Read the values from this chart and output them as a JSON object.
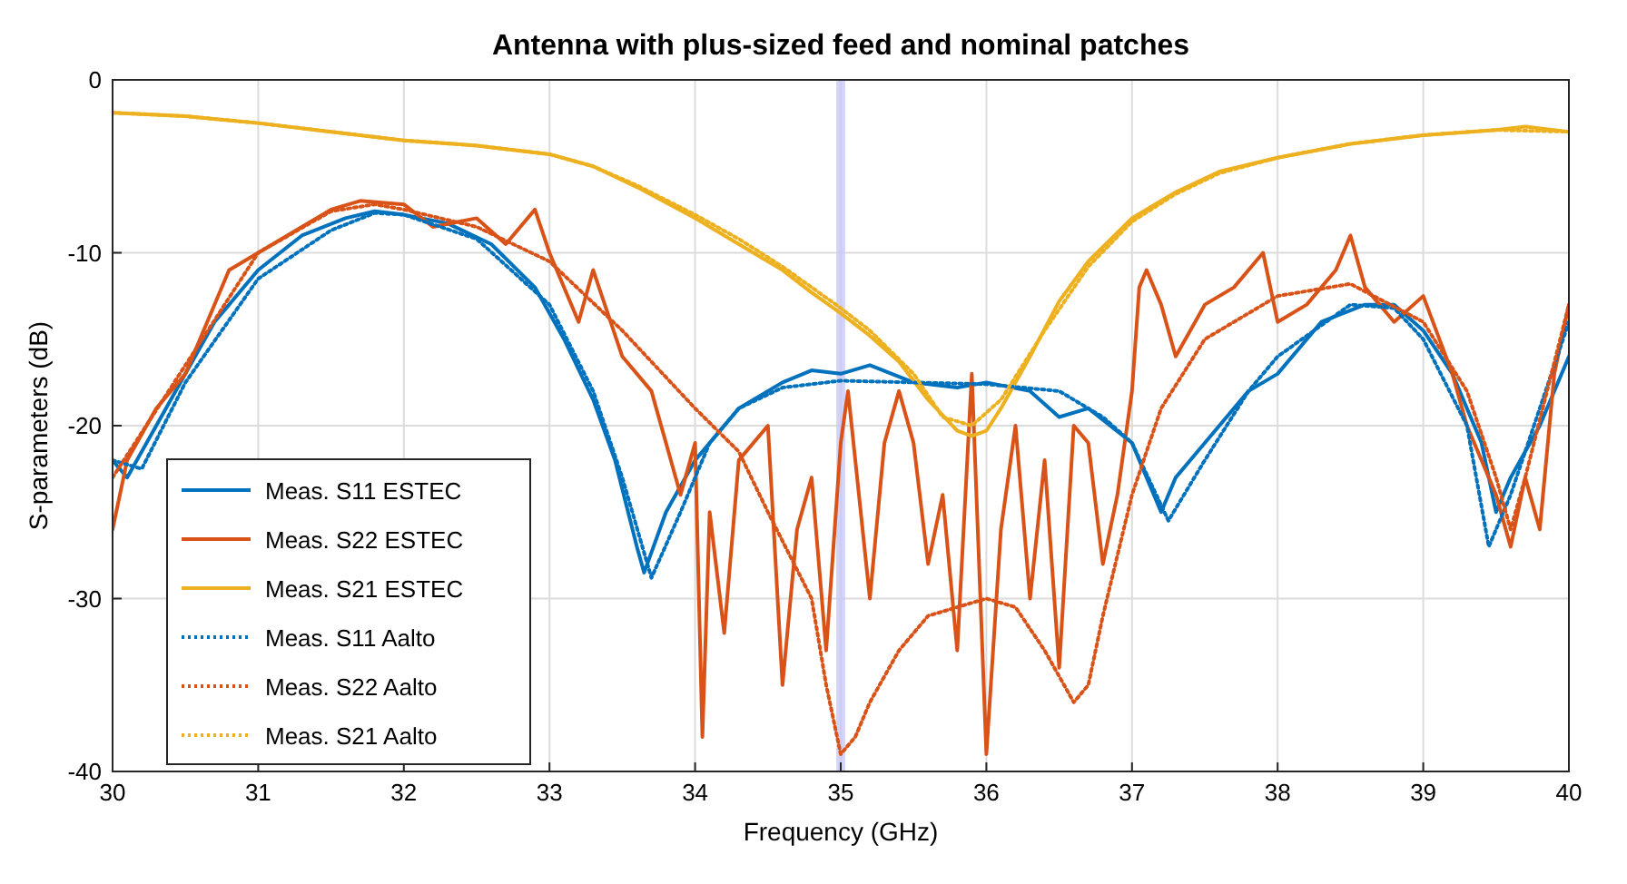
{
  "chart_data": {
    "type": "line",
    "title": "Antenna with plus-sized feed and nominal patches",
    "xlabel": "Frequency (GHz)",
    "ylabel": "S-parameters (dB)",
    "xlim": [
      30,
      40
    ],
    "xticks": [
      30,
      31,
      32,
      33,
      34,
      35,
      36,
      37,
      38,
      39,
      40
    ],
    "ylim": [
      -40,
      0
    ],
    "yticks": [
      -40,
      -30,
      -20,
      -10,
      0
    ],
    "grid": true,
    "legend": "bottom left",
    "bands": [
      {
        "axis": "x",
        "from": 34.97,
        "to": 35.03,
        "color": "#c8c8f5"
      }
    ],
    "series": [
      {
        "name": "Meas. S11 ESTEC",
        "color": "#0072bd",
        "line_style": "solid",
        "x": [
          30,
          30.1,
          30.3,
          30.5,
          30.7,
          31,
          31.3,
          31.6,
          31.8,
          32,
          32.3,
          32.6,
          32.9,
          33.1,
          33.3,
          33.45,
          33.6,
          33.65,
          33.8,
          34,
          34.3,
          34.6,
          34.8,
          35,
          35.2,
          35.5,
          35.8,
          36,
          36.3,
          36.5,
          36.7,
          37,
          37.2,
          37.3,
          37.5,
          37.8,
          38,
          38.3,
          38.6,
          38.8,
          39,
          39.2,
          39.4,
          39.5,
          39.6,
          39.8,
          40
        ],
        "values": [
          -22,
          -23,
          -20,
          -17,
          -14,
          -11,
          -9,
          -8,
          -7.6,
          -7.8,
          -8.3,
          -9.5,
          -12,
          -15,
          -18.5,
          -22,
          -27,
          -28.5,
          -25,
          -22,
          -19,
          -17.5,
          -16.8,
          -17,
          -16.5,
          -17.5,
          -17.8,
          -17.5,
          -18,
          -19.5,
          -19,
          -21,
          -25,
          -23,
          -21,
          -18,
          -17,
          -14,
          -13,
          -13,
          -14.5,
          -17,
          -21,
          -25,
          -23,
          -20,
          -16
        ]
      },
      {
        "name": "Meas. S22 ESTEC",
        "color": "#d95319",
        "line_style": "solid",
        "x": [
          30,
          30.1,
          30.3,
          30.5,
          30.6,
          30.8,
          31,
          31.2,
          31.5,
          31.7,
          32,
          32.2,
          32.5,
          32.7,
          32.9,
          33,
          33.2,
          33.3,
          33.5,
          33.7,
          33.8,
          33.9,
          34,
          34.05,
          34.1,
          34.2,
          34.3,
          34.5,
          34.6,
          34.7,
          34.8,
          34.9,
          35,
          35.05,
          35.1,
          35.2,
          35.3,
          35.4,
          35.5,
          35.6,
          35.7,
          35.8,
          35.9,
          36,
          36.1,
          36.2,
          36.3,
          36.4,
          36.5,
          36.6,
          36.7,
          36.8,
          36.9,
          37,
          37.05,
          37.1,
          37.2,
          37.3,
          37.5,
          37.7,
          37.9,
          38,
          38.2,
          38.4,
          38.5,
          38.6,
          38.8,
          39,
          39.2,
          39.3,
          39.5,
          39.6,
          39.7,
          39.8,
          39.9,
          40
        ],
        "values": [
          -26,
          -22,
          -19,
          -17,
          -15,
          -11,
          -10,
          -9,
          -7.5,
          -7,
          -7.2,
          -8.5,
          -8,
          -9.5,
          -7.5,
          -10,
          -14,
          -11,
          -16,
          -18,
          -21,
          -24,
          -21,
          -38,
          -25,
          -32,
          -22,
          -20,
          -35,
          -26,
          -23,
          -33,
          -21,
          -18,
          -22,
          -30,
          -21,
          -18,
          -21,
          -28,
          -24,
          -33,
          -17,
          -39,
          -26,
          -20,
          -30,
          -22,
          -34,
          -20,
          -21,
          -28,
          -24,
          -18,
          -12,
          -11,
          -13,
          -16,
          -13,
          -12,
          -10,
          -14,
          -13,
          -11,
          -9,
          -12,
          -14,
          -12.5,
          -17,
          -20,
          -24,
          -27,
          -23,
          -26,
          -17,
          -13
        ]
      },
      {
        "name": "Meas. S21 ESTEC",
        "color": "#edb120",
        "line_style": "solid",
        "x": [
          30,
          30.5,
          31,
          31.5,
          32,
          32.5,
          33,
          33.3,
          33.6,
          34,
          34.3,
          34.6,
          34.8,
          35,
          35.2,
          35.4,
          35.6,
          35.8,
          35.9,
          36,
          36.1,
          36.3,
          36.5,
          36.7,
          37,
          37.3,
          37.6,
          38,
          38.5,
          39,
          39.5,
          39.7,
          40
        ],
        "values": [
          -1.9,
          -2.1,
          -2.5,
          -3,
          -3.5,
          -3.8,
          -4.3,
          -5,
          -6.2,
          -8,
          -9.5,
          -11,
          -12.3,
          -13.5,
          -14.8,
          -16.3,
          -18.5,
          -20.3,
          -20.6,
          -20.3,
          -19,
          -16,
          -12.8,
          -10.5,
          -8,
          -6.5,
          -5.3,
          -4.5,
          -3.7,
          -3.2,
          -2.9,
          -2.7,
          -3
        ]
      },
      {
        "name": "Meas. S11 Aalto",
        "color": "#0072bd",
        "line_style": "dotted",
        "x": [
          30,
          30.2,
          30.5,
          31,
          31.5,
          31.8,
          32,
          32.5,
          33,
          33.3,
          33.5,
          33.7,
          33.9,
          34.1,
          34.3,
          34.6,
          35,
          35.5,
          36,
          36.5,
          36.8,
          37,
          37.25,
          37.5,
          37.8,
          38,
          38.5,
          38.8,
          39,
          39.3,
          39.45,
          39.6,
          39.8,
          40
        ],
        "values": [
          -22,
          -22.5,
          -17.5,
          -11.5,
          -8.7,
          -7.7,
          -7.8,
          -9.2,
          -13,
          -18,
          -23,
          -28.8,
          -25,
          -21,
          -19,
          -17.8,
          -17.4,
          -17.5,
          -17.6,
          -18,
          -19.5,
          -21,
          -25.5,
          -22,
          -18,
          -16,
          -13,
          -13.2,
          -15,
          -20,
          -27,
          -24,
          -19,
          -14
        ]
      },
      {
        "name": "Meas. S22 Aalto",
        "color": "#d95319",
        "line_style": "dotted",
        "x": [
          30,
          30.5,
          31,
          31.5,
          31.8,
          32,
          32.5,
          33,
          33.5,
          34,
          34.3,
          34.5,
          34.8,
          34.9,
          35,
          35.1,
          35.2,
          35.4,
          35.6,
          36,
          36.2,
          36.4,
          36.6,
          36.7,
          36.8,
          37,
          37.2,
          37.5,
          38,
          38.5,
          39,
          39.3,
          39.5,
          39.6,
          39.7,
          40
        ],
        "values": [
          -23,
          -16.5,
          -10,
          -7.6,
          -7.2,
          -7.5,
          -8.5,
          -10.5,
          -14.5,
          -19,
          -21.5,
          -25,
          -30,
          -35,
          -39,
          -38,
          -36,
          -33,
          -31,
          -30,
          -30.5,
          -33,
          -36,
          -35,
          -31,
          -24,
          -19,
          -15,
          -12.5,
          -11.8,
          -14,
          -18,
          -23,
          -26,
          -23,
          -13
        ]
      },
      {
        "name": "Meas. S21 Aalto",
        "color": "#edb120",
        "line_style": "dotted",
        "x": [
          30,
          30.5,
          31,
          31.5,
          32,
          32.5,
          33,
          33.3,
          33.6,
          34,
          34.3,
          34.6,
          34.8,
          35,
          35.2,
          35.5,
          35.7,
          35.9,
          36.1,
          36.4,
          36.7,
          37,
          37.3,
          37.6,
          38,
          38.5,
          39,
          39.5,
          40
        ],
        "values": [
          -1.9,
          -2.1,
          -2.5,
          -3,
          -3.5,
          -3.8,
          -4.3,
          -5,
          -6.1,
          -7.8,
          -9.2,
          -10.8,
          -12,
          -13.2,
          -14.5,
          -17,
          -19.5,
          -20,
          -18.5,
          -14.5,
          -10.8,
          -8.2,
          -6.6,
          -5.4,
          -4.5,
          -3.7,
          -3.2,
          -2.9,
          -3
        ]
      }
    ]
  }
}
